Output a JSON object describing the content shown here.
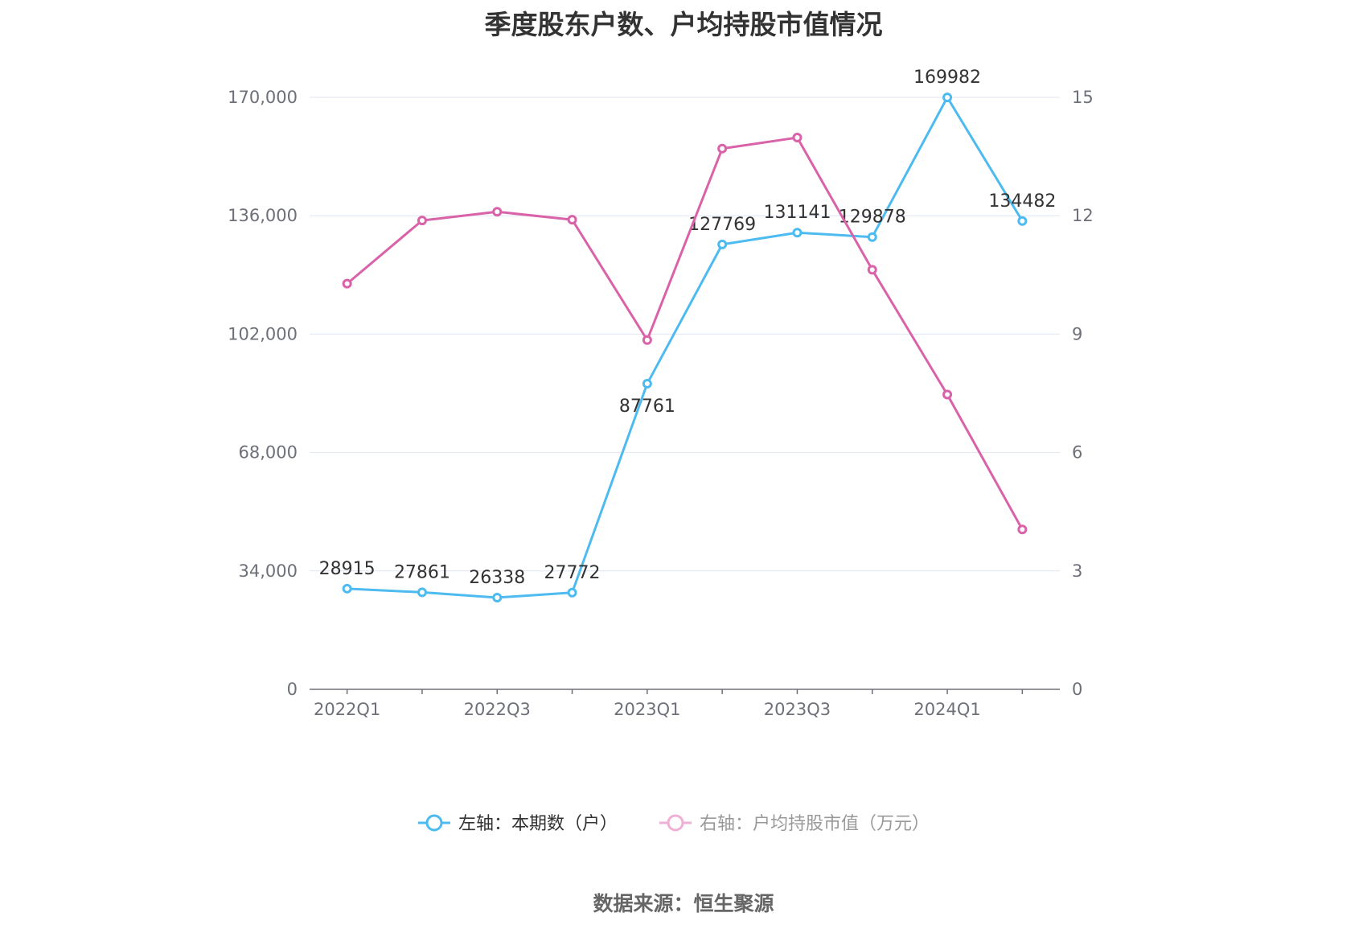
{
  "chart_data": {
    "type": "line",
    "title": "季度股东户数、户均持股市值情况",
    "categories": [
      "2022Q1",
      "2022Q2",
      "2022Q3",
      "2022Q4",
      "2023Q1",
      "2023Q2",
      "2023Q3",
      "2023Q4",
      "2024Q1",
      "2024Q2"
    ],
    "x_tick_labels": [
      "2022Q1",
      "2022Q3",
      "2023Q1",
      "2023Q3",
      "2024Q1"
    ],
    "y_left": {
      "ylim": [
        0,
        170000
      ],
      "ticks": [
        "0",
        "34,000",
        "68,000",
        "102,000",
        "136,000",
        "170,000"
      ],
      "tick_values": [
        0,
        34000,
        68000,
        102000,
        136000,
        170000
      ]
    },
    "y_right": {
      "ylim": [
        0,
        15
      ],
      "ticks": [
        "0",
        "3",
        "6",
        "9",
        "12",
        "15"
      ],
      "tick_values": [
        0,
        3,
        6,
        9,
        12,
        15
      ]
    },
    "series": [
      {
        "name": "左轴：本期数（户）",
        "axis": "left",
        "color": "#4dbbf0",
        "values": [
          28915,
          27861,
          26338,
          27772,
          87761,
          127769,
          131141,
          129878,
          169982,
          134482
        ],
        "labels": [
          "28915",
          "27861",
          "26338",
          "27772",
          "87761",
          "127769",
          "131141",
          "129878",
          "169982",
          "134482"
        ]
      },
      {
        "name": "右轴：户均持股市值（万元）",
        "axis": "right",
        "color": "#d962a8",
        "values": [
          10.28,
          11.88,
          12.1,
          11.9,
          8.85,
          13.7,
          13.98,
          10.63,
          7.47,
          4.05
        ]
      }
    ],
    "grid": true,
    "legend": "bottom-center"
  },
  "source": "数据来源：恒生聚源"
}
